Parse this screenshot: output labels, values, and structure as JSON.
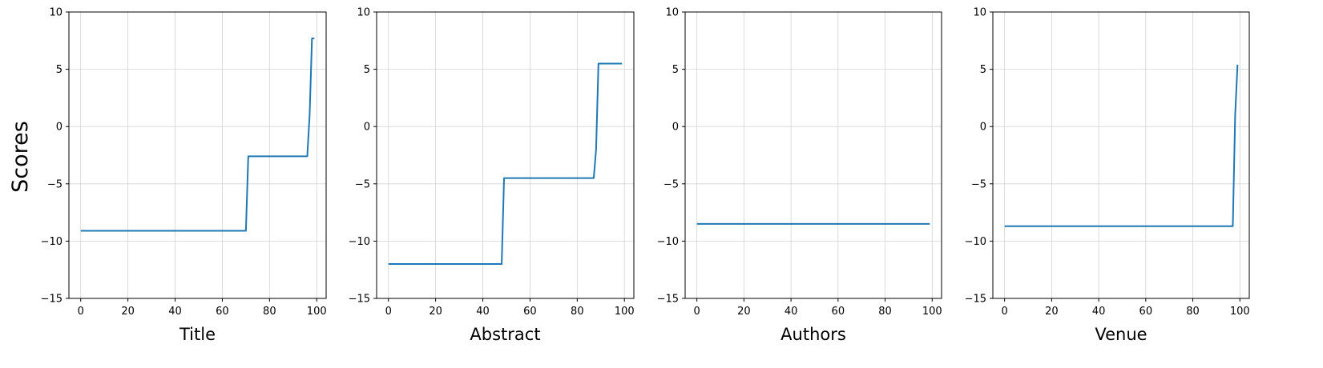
{
  "figure": {
    "ylabel": "Scores",
    "line_color": "#1f77b4"
  },
  "chart_data": [
    {
      "type": "line",
      "xlabel": "Title",
      "xlim": [
        -5,
        104
      ],
      "ylim": [
        -15,
        10
      ],
      "xticks": [
        0,
        20,
        40,
        60,
        80,
        100
      ],
      "yticks": [
        -15,
        -10,
        -5,
        0,
        5,
        10
      ],
      "grid": true,
      "series": [
        {
          "x": [
            0,
            70,
            71,
            96,
            97,
            98,
            99
          ],
          "y": [
            -9.1,
            -9.1,
            -2.6,
            -2.6,
            1.0,
            7.7,
            7.7
          ]
        }
      ]
    },
    {
      "type": "line",
      "xlabel": "Abstract",
      "xlim": [
        -5,
        104
      ],
      "ylim": [
        -15,
        10
      ],
      "xticks": [
        0,
        20,
        40,
        60,
        80,
        100
      ],
      "yticks": [
        -15,
        -10,
        -5,
        0,
        5,
        10
      ],
      "grid": true,
      "series": [
        {
          "x": [
            0,
            48,
            49,
            87,
            88,
            89,
            99
          ],
          "y": [
            -12.0,
            -12.0,
            -4.5,
            -4.5,
            -2.0,
            5.5,
            5.5
          ]
        }
      ]
    },
    {
      "type": "line",
      "xlabel": "Authors",
      "xlim": [
        -5,
        104
      ],
      "ylim": [
        -15,
        10
      ],
      "xticks": [
        0,
        20,
        40,
        60,
        80,
        100
      ],
      "yticks": [
        -15,
        -10,
        -5,
        0,
        5,
        10
      ],
      "grid": true,
      "series": [
        {
          "x": [
            0,
            99
          ],
          "y": [
            -8.5,
            -8.5
          ]
        }
      ]
    },
    {
      "type": "line",
      "xlabel": "Venue",
      "xlim": [
        -5,
        104
      ],
      "ylim": [
        -15,
        10
      ],
      "xticks": [
        0,
        20,
        40,
        60,
        80,
        100
      ],
      "yticks": [
        -15,
        -10,
        -5,
        0,
        5,
        10
      ],
      "grid": true,
      "series": [
        {
          "x": [
            0,
            97,
            98,
            99
          ],
          "y": [
            -8.7,
            -8.7,
            1.0,
            5.4
          ]
        }
      ]
    }
  ]
}
